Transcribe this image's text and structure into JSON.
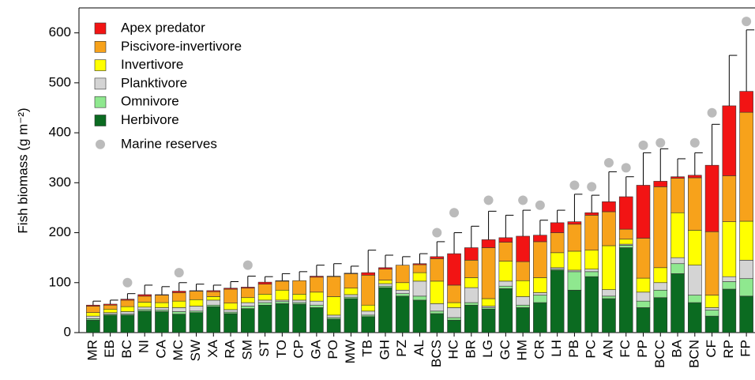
{
  "chart_data": {
    "type": "bar",
    "stacked": true,
    "y_label": "Fish biomass  (g m⁻²)",
    "categories": [
      "MR",
      "EB",
      "BC",
      "NI",
      "CA",
      "MC",
      "SW",
      "XA",
      "RA",
      "SM",
      "ST",
      "TO",
      "CP",
      "GA",
      "PO",
      "MW",
      "TB",
      "GH",
      "PZ",
      "AL",
      "BCS",
      "HC",
      "BR",
      "LG",
      "GC",
      "HM",
      "CR",
      "LH",
      "PB",
      "PC",
      "AN",
      "FC",
      "PP",
      "BCC",
      "BA",
      "BCN",
      "CF",
      "RP",
      "FP"
    ],
    "series": [
      {
        "name": "Herbivore",
        "color": "#0b6b21",
        "values": [
          25,
          35,
          35,
          43,
          42,
          37,
          40,
          52,
          38,
          48,
          55,
          58,
          57,
          50,
          27,
          68,
          32,
          90,
          73,
          65,
          38,
          25,
          55,
          47,
          88,
          50,
          60,
          125,
          85,
          112,
          68,
          170,
          50,
          70,
          118,
          60,
          33,
          87,
          73
        ]
      },
      {
        "name": "Omnivore",
        "color": "#8fe88f",
        "values": [
          3,
          2,
          2,
          3,
          3,
          5,
          3,
          3,
          3,
          5,
          5,
          4,
          3,
          5,
          3,
          3,
          3,
          3,
          5,
          8,
          5,
          5,
          5,
          3,
          5,
          5,
          15,
          2,
          37,
          10,
          5,
          5,
          13,
          15,
          20,
          15,
          12,
          15,
          35
        ]
      },
      {
        "name": "Planktivore",
        "color": "#d4d4d4",
        "values": [
          5,
          3,
          5,
          5,
          5,
          8,
          10,
          10,
          5,
          7,
          5,
          3,
          5,
          8,
          5,
          5,
          8,
          5,
          7,
          30,
          15,
          20,
          30,
          3,
          10,
          17,
          5,
          3,
          3,
          5,
          13,
          2,
          18,
          15,
          12,
          60,
          5,
          10,
          37
        ]
      },
      {
        "name": "Invertivore",
        "color": "#ffff00",
        "values": [
          7,
          7,
          10,
          10,
          10,
          13,
          13,
          7,
          13,
          10,
          12,
          20,
          12,
          18,
          37,
          13,
          12,
          7,
          15,
          17,
          45,
          10,
          20,
          15,
          40,
          32,
          30,
          30,
          38,
          38,
          88,
          10,
          28,
          30,
          90,
          70,
          25,
          110,
          78
        ]
      },
      {
        "name": "Piscivore-invertivore",
        "color": "#f7a21b",
        "values": [
          13,
          8,
          13,
          12,
          15,
          17,
          17,
          10,
          28,
          19,
          20,
          18,
          27,
          30,
          40,
          29,
          60,
          22,
          35,
          16,
          45,
          35,
          35,
          102,
          38,
          38,
          72,
          40,
          54,
          70,
          68,
          20,
          80,
          162,
          69,
          105,
          127,
          92,
          218
        ]
      },
      {
        "name": "Apex predator",
        "color": "#f21414",
        "values": [
          2,
          2,
          2,
          3,
          1,
          3,
          1,
          2,
          2,
          2,
          4,
          1,
          0,
          2,
          1,
          1,
          5,
          3,
          0,
          2,
          4,
          63,
          25,
          16,
          9,
          51,
          13,
          20,
          5,
          5,
          20,
          65,
          106,
          11,
          3,
          5,
          133,
          140,
          42
        ]
      }
    ],
    "errors": [
      8,
      8,
      11,
      19,
      16,
      17,
      13,
      11,
      13,
      22,
      11,
      14,
      18,
      22,
      25,
      14,
      45,
      25,
      17,
      20,
      30,
      42,
      43,
      57,
      45,
      52,
      30,
      25,
      55,
      35,
      60,
      40,
      65,
      65,
      36,
      45,
      82,
      101,
      123
    ],
    "reserves": {
      "name": "Marine reserves",
      "color": "#bbbbbb",
      "values": [
        null,
        null,
        100,
        null,
        null,
        120,
        null,
        null,
        null,
        135,
        null,
        null,
        null,
        null,
        null,
        null,
        null,
        null,
        null,
        null,
        200,
        240,
        null,
        265,
        null,
        265,
        255,
        null,
        295,
        292,
        340,
        330,
        375,
        380,
        null,
        380,
        440,
        null,
        623
      ]
    },
    "ylim": [
      0,
      650
    ],
    "yticks": [
      0,
      100,
      200,
      300,
      400,
      500,
      600
    ],
    "legend": "upper-left"
  }
}
